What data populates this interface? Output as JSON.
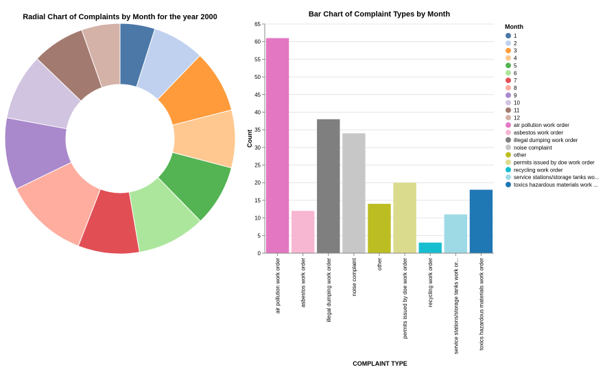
{
  "chart_data": [
    {
      "type": "pie",
      "title": "Radial Chart of Complaints by Month for the year 2000",
      "categories": [
        "1",
        "2",
        "3",
        "4",
        "5",
        "6",
        "7",
        "8",
        "9",
        "10",
        "11",
        "12"
      ],
      "values": [
        4.9,
        7.3,
        8.8,
        8.1,
        8.6,
        9.6,
        8.6,
        11.9,
        10.1,
        9.3,
        7.4,
        5.4
      ],
      "colors": [
        "#4c78a8",
        "#bfd1ee",
        "#ff9b3b",
        "#ffc890",
        "#54b352",
        "#ace69c",
        "#e14f55",
        "#fead9f",
        "#a988cc",
        "#d1c4e0",
        "#a37a6f",
        "#d4b2a8"
      ],
      "inner_radius_fraction": 0.47,
      "start_angle_deg": 0,
      "direction": "clockwise"
    },
    {
      "type": "bar",
      "title": "Bar Chart of Complaint Types by Month",
      "xlabel": "COMPLAINT TYPE",
      "ylabel": "Count",
      "ylim": [
        0,
        65
      ],
      "yticks": [
        0,
        5,
        10,
        15,
        20,
        25,
        30,
        35,
        40,
        45,
        50,
        55,
        60,
        65
      ],
      "grid": true,
      "categories": [
        "air pollution work order",
        "asbestos work order",
        "illegal dumping work order",
        "noise complaint",
        "other",
        "permits issued by doe work order",
        "recycling work order",
        "service stations/storage tanks work or...",
        "toxics hazardous materials work order"
      ],
      "values": [
        61,
        12,
        38,
        34,
        14,
        20,
        3,
        11,
        18
      ],
      "colors": [
        "#e377c2",
        "#f7b6d2",
        "#7f7f7f",
        "#c7c7c7",
        "#bcbd22",
        "#dbdb8d",
        "#17becf",
        "#9edae5",
        "#1f77b4"
      ]
    }
  ],
  "legend": {
    "title": "Month",
    "placement": "right",
    "items": [
      {
        "label": "1",
        "color": "#4c78a8"
      },
      {
        "label": "2",
        "color": "#bfd1ee"
      },
      {
        "label": "3",
        "color": "#ff9b3b"
      },
      {
        "label": "4",
        "color": "#ffc890"
      },
      {
        "label": "5",
        "color": "#54b352"
      },
      {
        "label": "6",
        "color": "#ace69c"
      },
      {
        "label": "7",
        "color": "#e14f55"
      },
      {
        "label": "8",
        "color": "#fead9f"
      },
      {
        "label": "9",
        "color": "#a988cc"
      },
      {
        "label": "10",
        "color": "#d1c4e0"
      },
      {
        "label": "11",
        "color": "#a37a6f"
      },
      {
        "label": "12",
        "color": "#d4b2a8"
      },
      {
        "label": "air pollution work order",
        "color": "#e377c2"
      },
      {
        "label": "asbestos work order",
        "color": "#f7b6d2"
      },
      {
        "label": "illegal dumping work order",
        "color": "#7f7f7f"
      },
      {
        "label": "noise complaint",
        "color": "#c7c7c7"
      },
      {
        "label": "other",
        "color": "#bcbd22"
      },
      {
        "label": "permits issued by doe work order",
        "color": "#dbdb8d"
      },
      {
        "label": "recycling work order",
        "color": "#17becf"
      },
      {
        "label": "service stations/storage tanks wo...",
        "color": "#9edae5"
      },
      {
        "label": "toxics hazardous materials work ...",
        "color": "#1f77b4"
      }
    ]
  }
}
